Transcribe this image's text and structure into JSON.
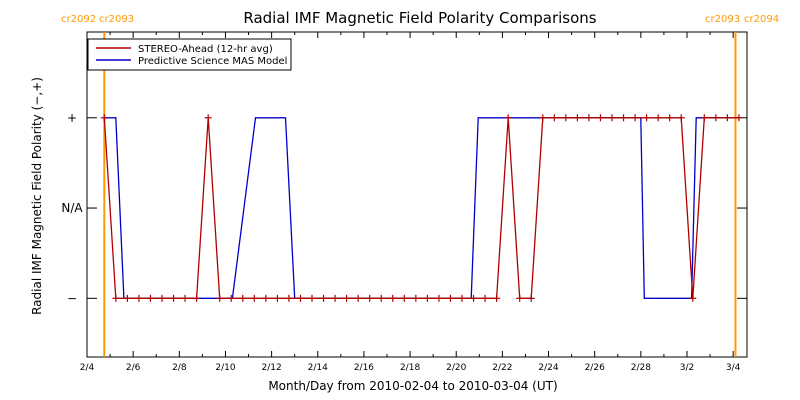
{
  "chart_data": {
    "type": "line",
    "title": "Radial IMF Magnetic Field Polarity Comparisons",
    "xlabel": "Month/Day from 2010-02-04 to 2010-03-04 (UT)",
    "ylabel": "Radial IMF Magnetic Field Polarity (−,+)",
    "x_tick_labels": [
      "2/4",
      "2/6",
      "2/8",
      "2/10",
      "2/12",
      "2/14",
      "2/16",
      "2/18",
      "2/20",
      "2/22",
      "2/24",
      "2/26",
      "2/28",
      "3/2",
      "3/4"
    ],
    "x_tick_days": [
      0,
      2,
      4,
      6,
      8,
      10,
      12,
      14,
      16,
      18,
      20,
      22,
      24,
      26,
      28
    ],
    "xlim_days": [
      0,
      28.6
    ],
    "y_tick_labels": [
      "+",
      "N/A",
      "−"
    ],
    "y_tick_values": [
      1,
      0,
      -1
    ],
    "ylim": [
      -1.65,
      1.95
    ],
    "carrington_markers": [
      {
        "day": 0.75,
        "label_left": "cr2092",
        "label_right": "cr2093",
        "color": "#ff9900"
      },
      {
        "day": 28.1,
        "label_left": "cr2093",
        "label_right": "cr2094",
        "color": "#ff9900"
      }
    ],
    "legend": {
      "position": "top-left"
    },
    "series": [
      {
        "name": "STEREO-Ahead (12-hr avg)",
        "color": "#b00000",
        "marker": "plus",
        "x": [
          0.75,
          1.25,
          1.75,
          2.25,
          2.75,
          3.25,
          3.75,
          4.25,
          4.75,
          5.25,
          5.75,
          6.25,
          6.75,
          7.25,
          7.75,
          8.25,
          8.75,
          9.25,
          9.75,
          10.25,
          10.75,
          11.25,
          11.75,
          12.25,
          12.75,
          13.25,
          13.75,
          14.25,
          14.75,
          15.25,
          15.75,
          16.25,
          16.75,
          17.25,
          17.75,
          18.25,
          18.75,
          19.25,
          19.75,
          20.25,
          20.75,
          21.25,
          21.75,
          22.25,
          22.75,
          23.25,
          23.75,
          24.25,
          24.75,
          25.25,
          25.75,
          26.25,
          26.75,
          27.25,
          27.75,
          28.25
        ],
        "y": [
          1,
          -1,
          -1,
          -1,
          -1,
          -1,
          -1,
          -1,
          -1,
          1,
          -1,
          -1,
          -1,
          -1,
          -1,
          -1,
          -1,
          -1,
          -1,
          -1,
          -1,
          -1,
          -1,
          -1,
          -1,
          -1,
          -1,
          -1,
          -1,
          -1,
          -1,
          -1,
          -1,
          -1,
          -1,
          1,
          -1,
          -1,
          1,
          1,
          1,
          1,
          1,
          1,
          1,
          1,
          1,
          1,
          1,
          1,
          1,
          -1,
          1,
          1,
          1,
          1
        ]
      },
      {
        "name": "Predictive Science MAS Model",
        "color": "#0000cc",
        "marker": "none",
        "x": [
          0.75,
          1.25,
          1.6,
          5.85,
          6.3,
          7.3,
          8.2,
          8.6,
          9.0,
          11.7,
          12.3,
          16.65,
          16.95,
          24.0,
          24.15,
          26.2,
          26.4,
          28.1
        ],
        "y": [
          1,
          1,
          -1,
          -1,
          -1,
          1,
          1,
          1,
          -1,
          -1,
          -1,
          -1,
          1,
          1,
          -1,
          -1,
          1,
          1
        ]
      }
    ]
  }
}
